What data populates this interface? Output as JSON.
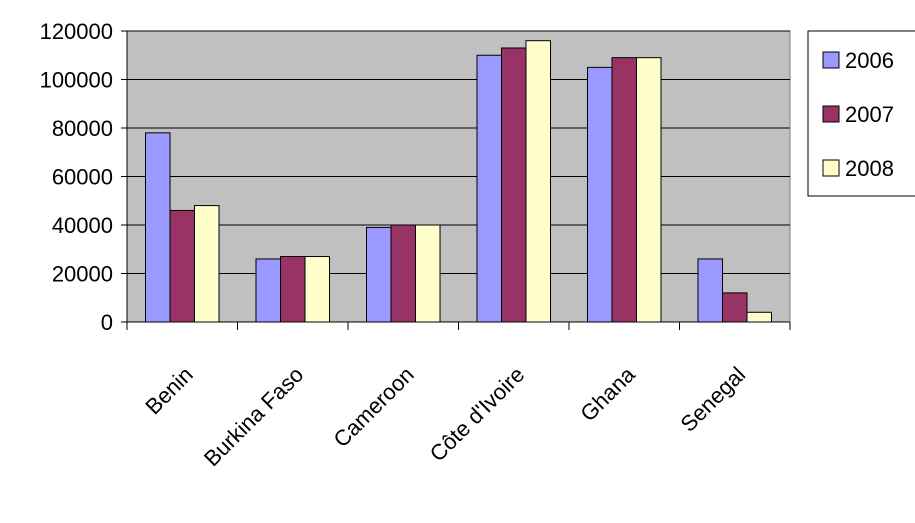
{
  "chart_data": {
    "type": "bar",
    "title": "",
    "xlabel": "",
    "ylabel": "",
    "categories": [
      "Benin",
      "Burkina Faso",
      "Cameroon",
      "Côte d'Ivoire",
      "Ghana",
      "Senegal"
    ],
    "series": [
      {
        "name": "2006",
        "color": "#9999ff",
        "values": [
          78000,
          26000,
          39000,
          110000,
          105000,
          26000
        ]
      },
      {
        "name": "2007",
        "color": "#993366",
        "values": [
          46000,
          27000,
          40000,
          113000,
          109000,
          12000
        ]
      },
      {
        "name": "2008",
        "color": "#ffffcc",
        "values": [
          48000,
          27000,
          40000,
          116000,
          109000,
          4000
        ]
      }
    ],
    "ylim": [
      0,
      120000
    ],
    "yticks": [
      "0",
      "20000",
      "40000",
      "60000",
      "80000",
      "100000",
      "120000"
    ],
    "grid": true,
    "plot_background": "#c0c0c0",
    "legend": "right"
  }
}
